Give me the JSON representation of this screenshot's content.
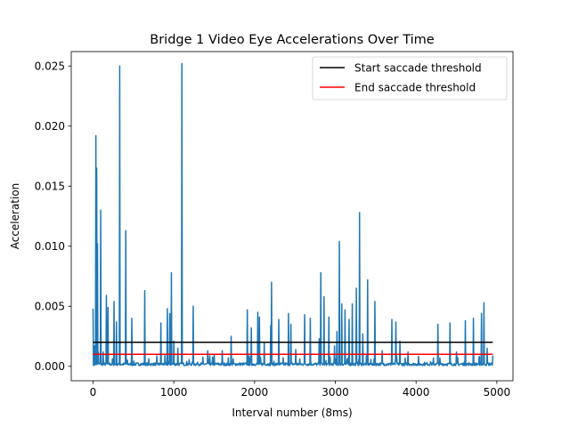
{
  "chart_data": {
    "type": "line",
    "title": "Bridge 1 Video Eye Accelerations Over Time",
    "xlabel": "Interval number (8ms)",
    "ylabel": "Acceleration",
    "xlim": [
      -270,
      5200
    ],
    "ylim": [
      -0.0012,
      0.0262
    ],
    "xticks": [
      0,
      1000,
      2000,
      3000,
      4000,
      5000
    ],
    "xtick_labels": [
      "0",
      "1000",
      "2000",
      "3000",
      "4000",
      "5000"
    ],
    "yticks": [
      0.0,
      0.005,
      0.01,
      0.015,
      0.02,
      0.025
    ],
    "ytick_labels": [
      "0.000",
      "0.005",
      "0.010",
      "0.015",
      "0.020",
      "0.025"
    ],
    "grid": false,
    "legend_position": "top-right",
    "colors": {
      "series": "#1f77b4",
      "start": "#000000",
      "end": "#ff0000"
    },
    "series": [
      {
        "name": "",
        "baseline": 0.0002,
        "x_range": [
          0,
          4950
        ],
        "spikes": [
          [
            0,
            0.0048
          ],
          [
            20,
            0.0017
          ],
          [
            35,
            0.0192
          ],
          [
            45,
            0.0165
          ],
          [
            55,
            0.0102
          ],
          [
            65,
            0.0012
          ],
          [
            95,
            0.013
          ],
          [
            125,
            0.0012
          ],
          [
            165,
            0.0059
          ],
          [
            185,
            0.0049
          ],
          [
            260,
            0.0054
          ],
          [
            290,
            0.0037
          ],
          [
            330,
            0.025
          ],
          [
            405,
            0.0113
          ],
          [
            480,
            0.004
          ],
          [
            640,
            0.0063
          ],
          [
            840,
            0.0036
          ],
          [
            920,
            0.0048
          ],
          [
            950,
            0.0044
          ],
          [
            970,
            0.0078
          ],
          [
            1000,
            0.0021
          ],
          [
            1050,
            0.0015
          ],
          [
            1100,
            0.0252
          ],
          [
            1240,
            0.005
          ],
          [
            1420,
            0.0013
          ],
          [
            1500,
            0.001
          ],
          [
            1600,
            0.0013
          ],
          [
            1710,
            0.0025
          ],
          [
            1910,
            0.0047
          ],
          [
            1960,
            0.0032
          ],
          [
            2040,
            0.0045
          ],
          [
            2060,
            0.0041
          ],
          [
            2120,
            0.0019
          ],
          [
            2200,
            0.0034
          ],
          [
            2210,
            0.007
          ],
          [
            2300,
            0.0039
          ],
          [
            2420,
            0.0044
          ],
          [
            2450,
            0.0035
          ],
          [
            2510,
            0.0014
          ],
          [
            2620,
            0.0043
          ],
          [
            2690,
            0.004
          ],
          [
            2800,
            0.0023
          ],
          [
            2820,
            0.0078
          ],
          [
            2860,
            0.0058
          ],
          [
            2920,
            0.0041
          ],
          [
            2990,
            0.0017
          ],
          [
            3020,
            0.0029
          ],
          [
            3050,
            0.0104
          ],
          [
            3080,
            0.0052
          ],
          [
            3120,
            0.0047
          ],
          [
            3170,
            0.0039
          ],
          [
            3210,
            0.0052
          ],
          [
            3260,
            0.0065
          ],
          [
            3300,
            0.0128
          ],
          [
            3340,
            0.0027
          ],
          [
            3400,
            0.0072
          ],
          [
            3490,
            0.0054
          ],
          [
            3580,
            0.0013
          ],
          [
            3700,
            0.0039
          ],
          [
            3750,
            0.0037
          ],
          [
            3800,
            0.0021
          ],
          [
            3900,
            0.0012
          ],
          [
            4270,
            0.0035
          ],
          [
            4420,
            0.0036
          ],
          [
            4500,
            0.0012
          ],
          [
            4610,
            0.0038
          ],
          [
            4710,
            0.004
          ],
          [
            4810,
            0.0044
          ],
          [
            4840,
            0.0053
          ],
          [
            4880,
            0.0015
          ],
          [
            4950,
            0.0009
          ]
        ]
      },
      {
        "name": "Start saccade threshold",
        "y": 0.002,
        "x_range": [
          0,
          4950
        ]
      },
      {
        "name": "End saccade threshold",
        "y": 0.001,
        "x_range": [
          0,
          4950
        ]
      }
    ]
  }
}
